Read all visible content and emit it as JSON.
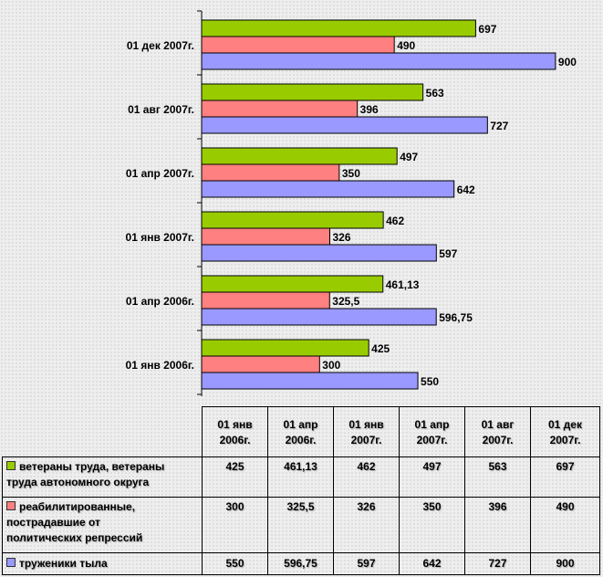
{
  "chart_data": {
    "type": "bar",
    "orientation": "horizontal",
    "categories": [
      "01 янв 2006г.",
      "01 апр 2006г.",
      "01 янв 2007г.",
      "01 апр 2007г.",
      "01 авг 2007г.",
      "01 дек 2007г."
    ],
    "table_headers": [
      [
        "01 янв",
        "2006г."
      ],
      [
        "01 апр",
        "2006г."
      ],
      [
        "01 янв",
        "2007г."
      ],
      [
        "01 апр",
        "2007г."
      ],
      [
        "01 авг",
        "2007г."
      ],
      [
        "01 дек",
        "2007г."
      ]
    ],
    "series": [
      {
        "name": "ветераны труда, ветераны труда автономного округа",
        "name_lines": [
          "ветераны труда, ветераны",
          "труда автономного округа"
        ],
        "color": "#99cc00",
        "values": [
          425,
          461.13,
          462,
          497,
          563,
          697
        ],
        "labels": [
          "425",
          "461,13",
          "462",
          "497",
          "563",
          "697"
        ]
      },
      {
        "name": "реабилитированные, пострадавшие от политических репрессий",
        "name_lines": [
          "реабилитированные,",
          "пострадавшие от",
          "политических репрессий"
        ],
        "color": "#ff8080",
        "values": [
          300,
          325.5,
          326,
          350,
          396,
          490
        ],
        "labels": [
          "300",
          "325,5",
          "326",
          "350",
          "396",
          "490"
        ]
      },
      {
        "name": "труженики тыла",
        "name_lines": [
          "труженики тыла"
        ],
        "color": "#9999ff",
        "values": [
          550,
          596.75,
          597,
          642,
          727,
          900
        ],
        "labels": [
          "550",
          "596,75",
          "597",
          "642",
          "727",
          "900"
        ]
      }
    ],
    "xlim": [
      0,
      990
    ],
    "grid": false,
    "legend": "table-below"
  }
}
